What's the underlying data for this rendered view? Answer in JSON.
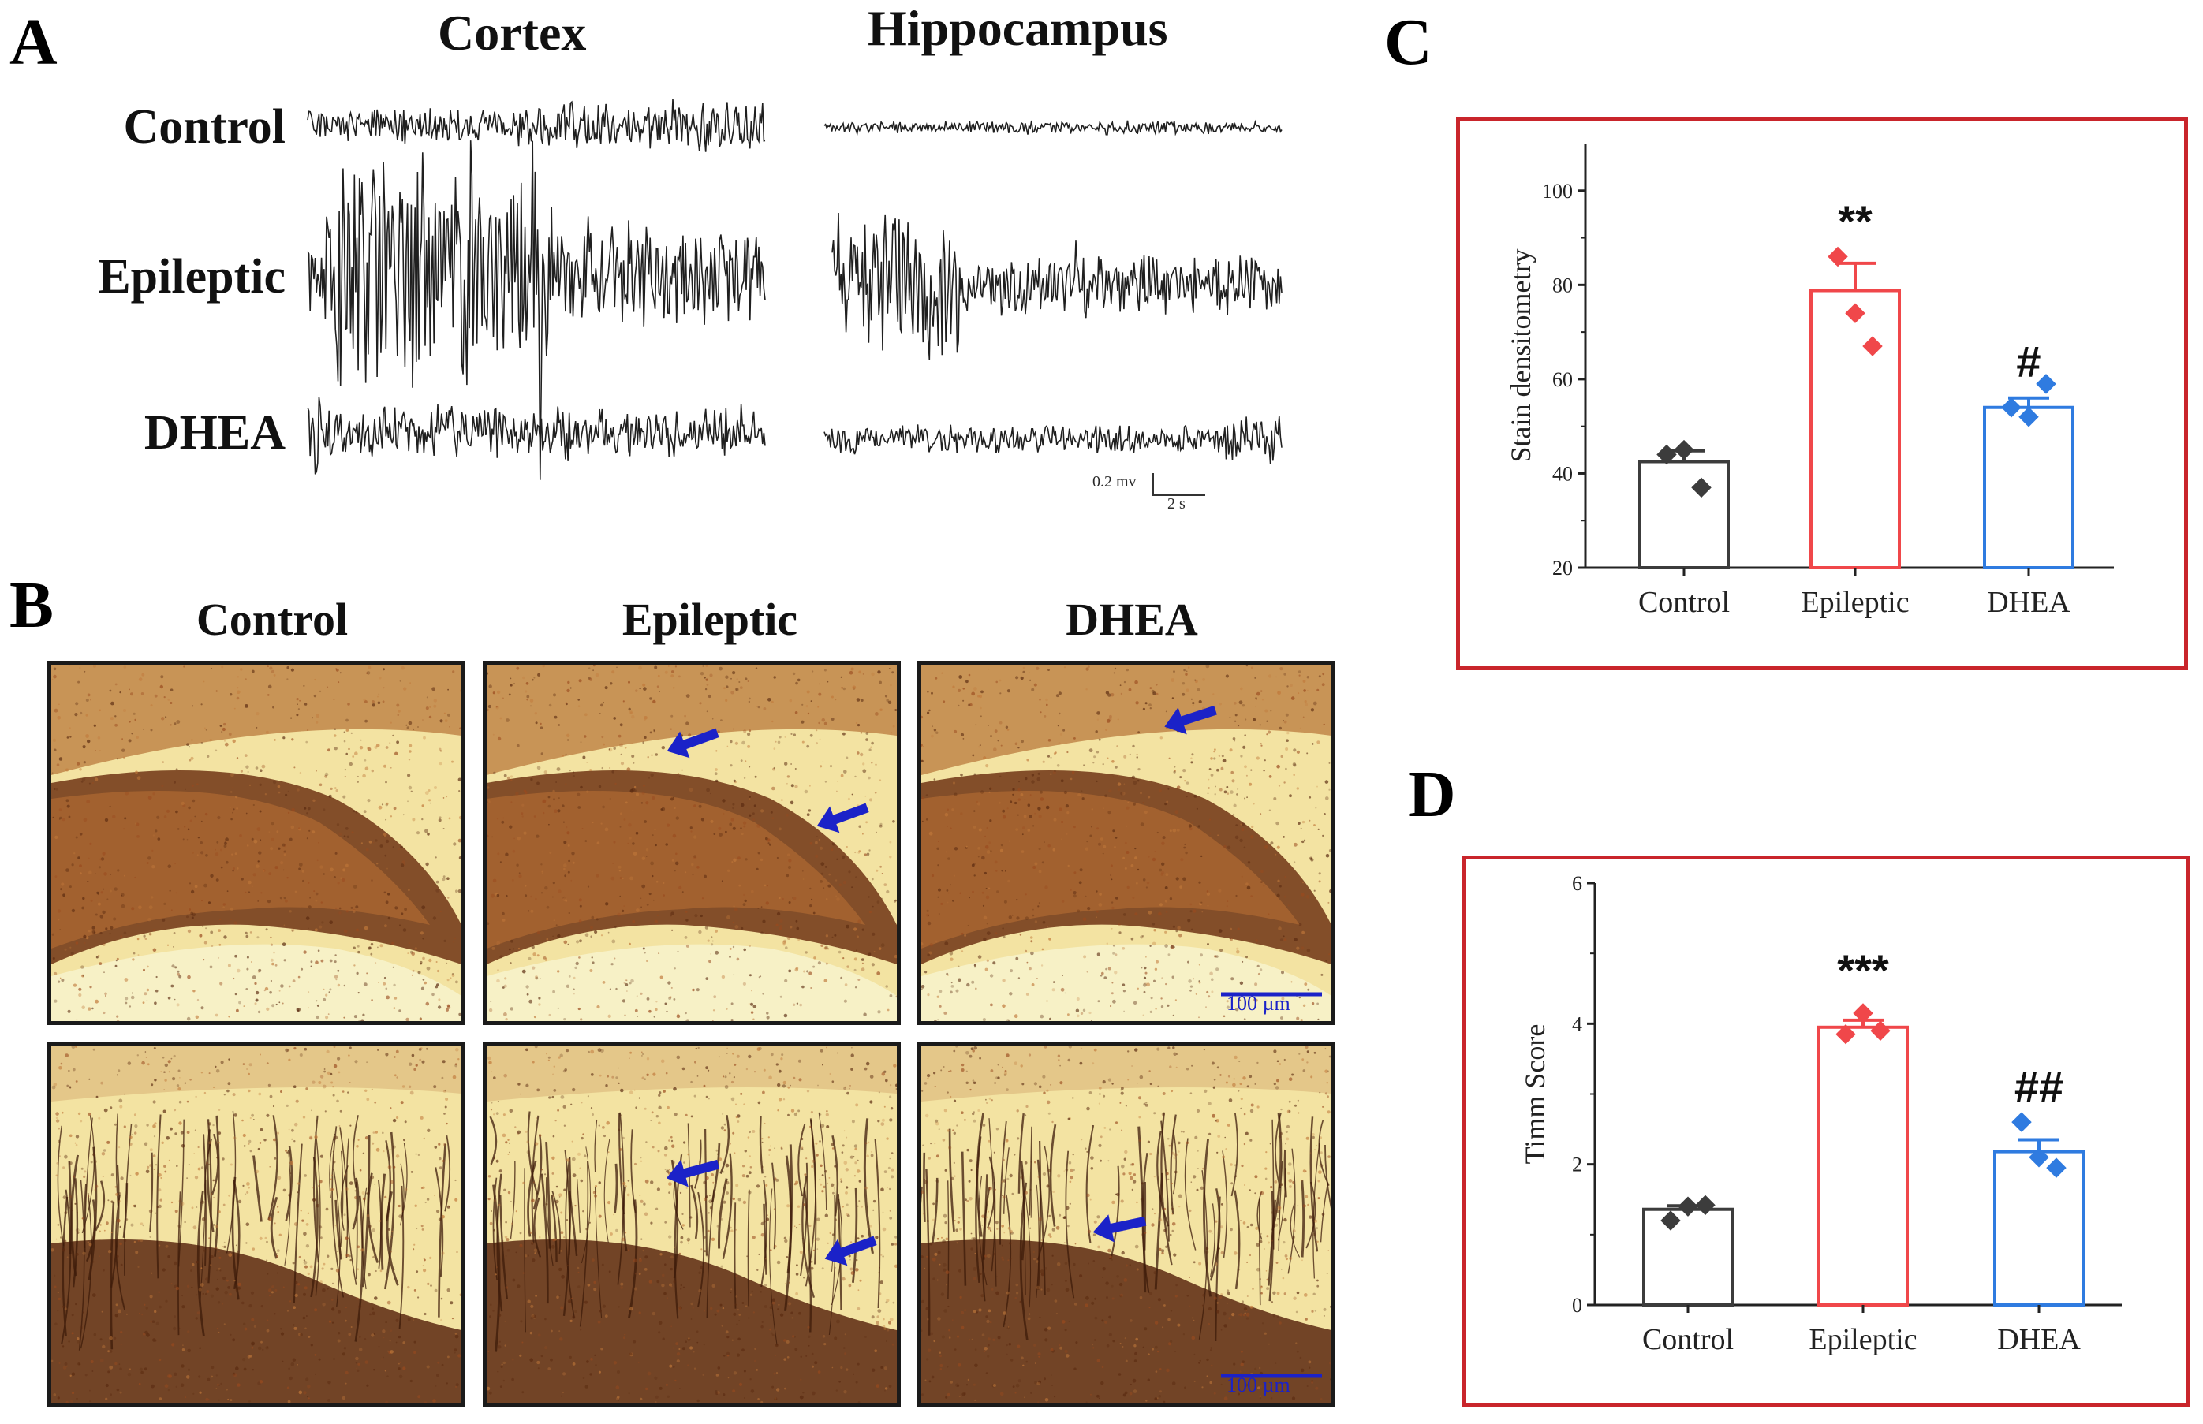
{
  "panel_a": {
    "letter": "A",
    "columns": [
      "Cortex",
      "Hippocampus"
    ],
    "rows": [
      "Control",
      "Epileptic",
      "DHEA"
    ],
    "scalebar": {
      "amplitude": "0.2 mv",
      "time": "2 s"
    }
  },
  "panel_b": {
    "letter": "B",
    "columns": [
      "Control",
      "Epileptic",
      "DHEA"
    ],
    "scalebar_label": "100 µm",
    "arrow_color": "#1b22c8"
  },
  "colors": {
    "control": "#3c3c3c",
    "epileptic": "#f0474a",
    "dhea": "#2f7be0",
    "frame": "#c9252b",
    "stain_light": "#f4e7a6",
    "stain_dark": "#5a2a10"
  },
  "chart_data": [
    {
      "panel": "C",
      "type": "bar",
      "categories": [
        "Control",
        "Epileptic",
        "DHEA"
      ],
      "values": [
        42.5,
        78.8,
        54.0
      ],
      "sem": [
        2.3,
        5.8,
        2.0
      ],
      "points": [
        [
          44,
          45,
          37
        ],
        [
          86,
          74,
          67
        ],
        [
          54,
          52,
          59
        ]
      ],
      "ylabel": "Stain densitometry",
      "ylim": [
        20,
        110
      ],
      "yticks": [
        20,
        40,
        60,
        80,
        100
      ],
      "annotations": [
        "",
        "**",
        "#"
      ]
    },
    {
      "panel": "D",
      "type": "bar",
      "categories": [
        "Control",
        "Epileptic",
        "DHEA"
      ],
      "values": [
        1.36,
        3.95,
        2.18
      ],
      "sem": [
        0.05,
        0.1,
        0.17
      ],
      "points": [
        [
          1.2,
          1.4,
          1.42
        ],
        [
          3.85,
          4.15,
          3.9
        ],
        [
          2.6,
          2.1,
          1.95
        ]
      ],
      "ylabel": "Timm Score",
      "ylim": [
        0,
        6
      ],
      "yticks": [
        0,
        2,
        4,
        6
      ],
      "annotations": [
        "",
        "***",
        "##"
      ]
    }
  ]
}
